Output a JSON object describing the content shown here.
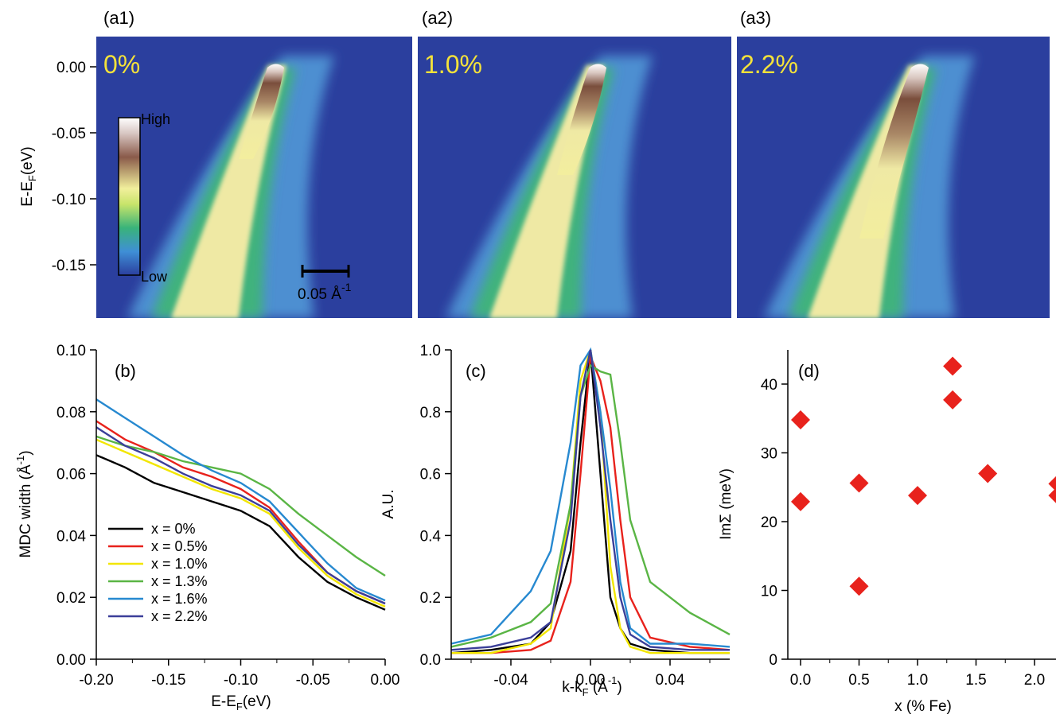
{
  "colors": {
    "map_background": "#2b3f9e",
    "map_mid": "#4d8fd1",
    "pct_text": "#f4e23a",
    "diamond": "#e8221c"
  },
  "chart_data": [
    {
      "id": "a",
      "type": "heatmap",
      "ylabel": "E-E_F(eV)",
      "yticks": [
        "0.00",
        "-0.05",
        "-0.10",
        "-0.15"
      ],
      "yvalues": [
        0.0,
        -0.05,
        -0.1,
        -0.15
      ],
      "ylim": [
        -0.19,
        0.02
      ],
      "colorbar": {
        "high": "High",
        "low": "Low"
      },
      "scale_bar": {
        "text": "0.05 Å",
        "sup": "-1",
        "length_invA": 0.05
      },
      "panels": [
        {
          "label": "(a1)",
          "composition": "0%"
        },
        {
          "label": "(a2)",
          "composition": "1.0%"
        },
        {
          "label": "(a3)",
          "composition": "2.2%"
        }
      ]
    },
    {
      "id": "b",
      "type": "line",
      "label": "(b)",
      "xlabel": "E-E_F(eV)",
      "ylabel": "MDC width (Å^-1)",
      "xlim": [
        -0.2,
        0.0
      ],
      "ylim": [
        0.0,
        0.1
      ],
      "xticks": [
        "-0.20",
        "-0.15",
        "-0.10",
        "-0.05",
        "0.00"
      ],
      "xtick_values": [
        -0.2,
        -0.15,
        -0.1,
        -0.05,
        0.0
      ],
      "yticks": [
        "0.00",
        "0.02",
        "0.04",
        "0.06",
        "0.08",
        "0.10"
      ],
      "ytick_values": [
        0.0,
        0.02,
        0.04,
        0.06,
        0.08,
        0.1
      ],
      "x": [
        -0.2,
        -0.18,
        -0.16,
        -0.14,
        -0.12,
        -0.1,
        -0.08,
        -0.06,
        -0.04,
        -0.02,
        0.0
      ],
      "series": [
        {
          "name": "x = 0%",
          "color": "#000000",
          "values": [
            0.066,
            0.062,
            0.057,
            0.054,
            0.051,
            0.048,
            0.043,
            0.033,
            0.025,
            0.02,
            0.016
          ]
        },
        {
          "name": "x = 0.5%",
          "color": "#e8221c",
          "values": [
            0.077,
            0.071,
            0.067,
            0.062,
            0.059,
            0.055,
            0.049,
            0.038,
            0.028,
            0.022,
            0.018
          ]
        },
        {
          "name": "x = 1.0%",
          "color": "#f2e600",
          "values": [
            0.071,
            0.067,
            0.063,
            0.059,
            0.055,
            0.052,
            0.047,
            0.036,
            0.027,
            0.021,
            0.017
          ]
        },
        {
          "name": "x = 1.3%",
          "color": "#5ab545",
          "values": [
            0.072,
            0.069,
            0.067,
            0.064,
            0.062,
            0.06,
            0.055,
            0.047,
            0.04,
            0.033,
            0.027
          ]
        },
        {
          "name": "x = 1.6%",
          "color": "#2789d0",
          "values": [
            0.084,
            0.078,
            0.072,
            0.066,
            0.061,
            0.057,
            0.051,
            0.041,
            0.031,
            0.023,
            0.019
          ]
        },
        {
          "name": "x = 2.2%",
          "color": "#3b3f99",
          "values": [
            0.075,
            0.069,
            0.065,
            0.06,
            0.056,
            0.053,
            0.048,
            0.037,
            0.028,
            0.022,
            0.018
          ]
        }
      ]
    },
    {
      "id": "c",
      "type": "line",
      "label": "(c)",
      "xlabel": "k-k_F (Å^-1)",
      "ylabel": "A.U.",
      "xlim": [
        -0.07,
        0.07
      ],
      "ylim": [
        0.0,
        1.0
      ],
      "xticks": [
        "-0.04",
        "0.00",
        "0.04"
      ],
      "xtick_values": [
        -0.04,
        0.0,
        0.04
      ],
      "yticks": [
        "0.0",
        "0.2",
        "0.4",
        "0.6",
        "0.8",
        "1.0"
      ],
      "ytick_values": [
        0.0,
        0.2,
        0.4,
        0.6,
        0.8,
        1.0
      ],
      "x": [
        -0.07,
        -0.05,
        -0.03,
        -0.02,
        -0.01,
        -0.005,
        0.0,
        0.005,
        0.01,
        0.015,
        0.02,
        0.03,
        0.05,
        0.07
      ],
      "series": [
        {
          "name": "x = 0%",
          "color": "#000000",
          "values": [
            0.02,
            0.03,
            0.05,
            0.12,
            0.35,
            0.7,
            1.0,
            0.6,
            0.2,
            0.1,
            0.05,
            0.03,
            0.02,
            0.02
          ]
        },
        {
          "name": "x = 0.5%",
          "color": "#e8221c",
          "values": [
            0.02,
            0.02,
            0.03,
            0.06,
            0.25,
            0.6,
            0.98,
            0.9,
            0.75,
            0.45,
            0.2,
            0.07,
            0.04,
            0.03
          ]
        },
        {
          "name": "x = 1.0%",
          "color": "#f2e600",
          "values": [
            0.02,
            0.02,
            0.05,
            0.1,
            0.5,
            0.9,
            1.0,
            0.8,
            0.3,
            0.1,
            0.04,
            0.02,
            0.02,
            0.02
          ]
        },
        {
          "name": "x = 1.3%",
          "color": "#5ab545",
          "values": [
            0.04,
            0.07,
            0.12,
            0.18,
            0.5,
            0.85,
            0.95,
            0.93,
            0.92,
            0.7,
            0.45,
            0.25,
            0.15,
            0.08
          ]
        },
        {
          "name": "x = 1.6%",
          "color": "#2789d0",
          "values": [
            0.05,
            0.08,
            0.22,
            0.35,
            0.7,
            0.95,
            1.0,
            0.8,
            0.55,
            0.25,
            0.1,
            0.05,
            0.05,
            0.04
          ]
        },
        {
          "name": "x = 2.2%",
          "color": "#3b3f99",
          "values": [
            0.03,
            0.04,
            0.07,
            0.12,
            0.45,
            0.85,
            1.0,
            0.75,
            0.45,
            0.2,
            0.08,
            0.04,
            0.03,
            0.03
          ]
        }
      ]
    },
    {
      "id": "d",
      "type": "scatter",
      "label": "(d)",
      "xlabel": "x (% Fe)",
      "ylabel": "ImΣ (meV)",
      "xlim": [
        -0.1,
        2.2
      ],
      "ylim": [
        0,
        45
      ],
      "xticks": [
        "0.0",
        "0.5",
        "1.0",
        "1.5",
        "2.0"
      ],
      "xtick_values": [
        0.0,
        0.5,
        1.0,
        1.5,
        2.0
      ],
      "yticks": [
        "0",
        "10",
        "20",
        "30",
        "40"
      ],
      "ytick_values": [
        0,
        10,
        20,
        30,
        40
      ],
      "points": [
        {
          "x": 0.0,
          "y": 34.8
        },
        {
          "x": 0.0,
          "y": 22.9
        },
        {
          "x": 0.5,
          "y": 25.6
        },
        {
          "x": 0.5,
          "y": 10.6
        },
        {
          "x": 1.0,
          "y": 23.8
        },
        {
          "x": 1.3,
          "y": 42.6
        },
        {
          "x": 1.3,
          "y": 37.7
        },
        {
          "x": 1.6,
          "y": 27.0
        },
        {
          "x": 2.2,
          "y": 25.5
        },
        {
          "x": 2.2,
          "y": 23.8
        }
      ]
    }
  ]
}
